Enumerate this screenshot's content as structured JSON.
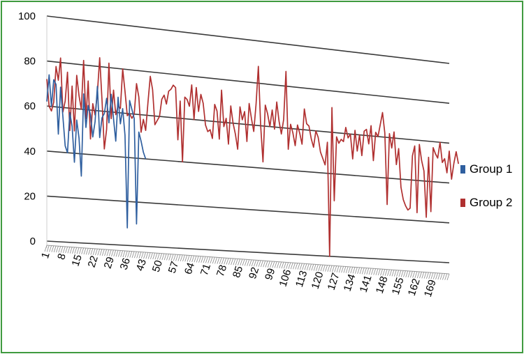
{
  "chart_data": {
    "type": "line",
    "title": "",
    "xlabel": "",
    "ylabel": "",
    "ylim": [
      0,
      100
    ],
    "yticks": [
      "0",
      "20",
      "40",
      "60",
      "80",
      "100"
    ],
    "x_tick_labels": [
      "1",
      "8",
      "15",
      "22",
      "29",
      "36",
      "43",
      "50",
      "57",
      "64",
      "71",
      "78",
      "85",
      "92",
      "99",
      "106",
      "113",
      "120",
      "127",
      "134",
      "141",
      "148",
      "155",
      "162",
      "169"
    ],
    "grid": true,
    "legend_position": "right",
    "series": [
      {
        "name": "Group 1",
        "color": "#2f5f9f",
        "values": [
          62,
          74,
          60,
          72,
          70,
          48,
          69,
          56,
          43,
          40,
          58,
          52,
          36,
          55,
          47,
          30,
          67,
          52,
          62,
          58,
          48,
          55,
          71,
          48,
          57,
          59,
          66,
          55,
          68,
          57,
          47,
          67,
          55,
          62,
          50,
          8,
          66,
          62,
          58,
          10,
          52,
          48,
          43,
          40
        ]
      },
      {
        "name": "Group 2",
        "color": "#b03030",
        "values": [
          72,
          60,
          58,
          62,
          78,
          72,
          82,
          58,
          63,
          76,
          50,
          70,
          50,
          75,
          66,
          60,
          82,
          56,
          73,
          47,
          63,
          58,
          68,
          84,
          65,
          43,
          52,
          82,
          57,
          70,
          59,
          63,
          62,
          80,
          70,
          59,
          60,
          58,
          60,
          74,
          68,
          52,
          58,
          53,
          66,
          78,
          72,
          56,
          58,
          60,
          68,
          70,
          66,
          72,
          73,
          75,
          74,
          50,
          68,
          40,
          70,
          69,
          66,
          76,
          60,
          75,
          64,
          72,
          68,
          58,
          55,
          56,
          52,
          68,
          65,
          52,
          75,
          58,
          62,
          50,
          68,
          60,
          55,
          48,
          68,
          62,
          66,
          52,
          70,
          63,
          57,
          70,
          88,
          60,
          43,
          70,
          66,
          60,
          68,
          59,
          72,
          63,
          57,
          64,
          87,
          50,
          62,
          58,
          52,
          62,
          58,
          53,
          70,
          63,
          62,
          56,
          52,
          60,
          57,
          50,
          47,
          44,
          55,
          0,
          72,
          27,
          58,
          55,
          57,
          56,
          63,
          58,
          60,
          48,
          62,
          52,
          60,
          50,
          62,
          63,
          56,
          65,
          48,
          62,
          60,
          66,
          72,
          62,
          27,
          62,
          55,
          63,
          47,
          55,
          36,
          30,
          27,
          25,
          26,
          52,
          57,
          24,
          58,
          50,
          45,
          22,
          52,
          25,
          57,
          54,
          52,
          60,
          50,
          52,
          45,
          56,
          42,
          50,
          56,
          50
        ]
      }
    ]
  }
}
